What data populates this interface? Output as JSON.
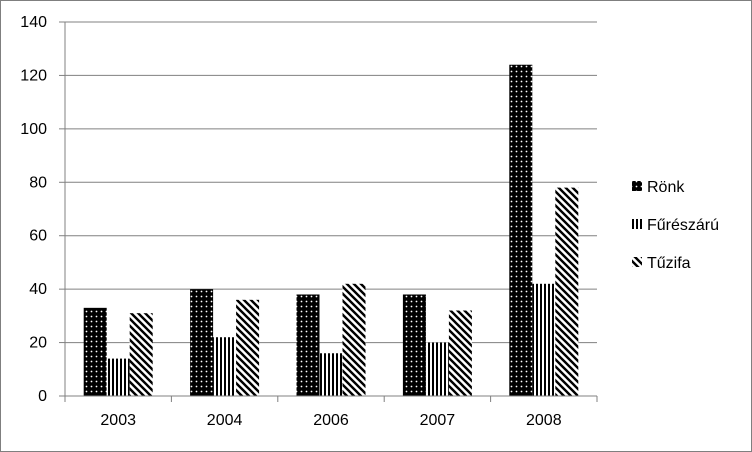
{
  "chart_data": {
    "type": "bar",
    "categories": [
      "2003",
      "2004",
      "2006",
      "2007",
      "2008"
    ],
    "series": [
      {
        "name": "Rönk",
        "values": [
          33,
          40,
          38,
          38,
          124
        ],
        "pattern": "dots"
      },
      {
        "name": "Fűrészárú",
        "values": [
          14,
          22,
          16,
          20,
          42
        ],
        "pattern": "vertical"
      },
      {
        "name": "Tűzifa",
        "values": [
          31,
          36,
          42,
          32,
          78
        ],
        "pattern": "diagonal"
      }
    ],
    "yticks": [
      0,
      20,
      40,
      60,
      80,
      100,
      120,
      140
    ],
    "ylim": [
      0,
      140
    ],
    "grid": true,
    "legend": "right",
    "colors": {
      "ink": "#000000",
      "grid": "#808080",
      "background": "#ffffff"
    }
  }
}
